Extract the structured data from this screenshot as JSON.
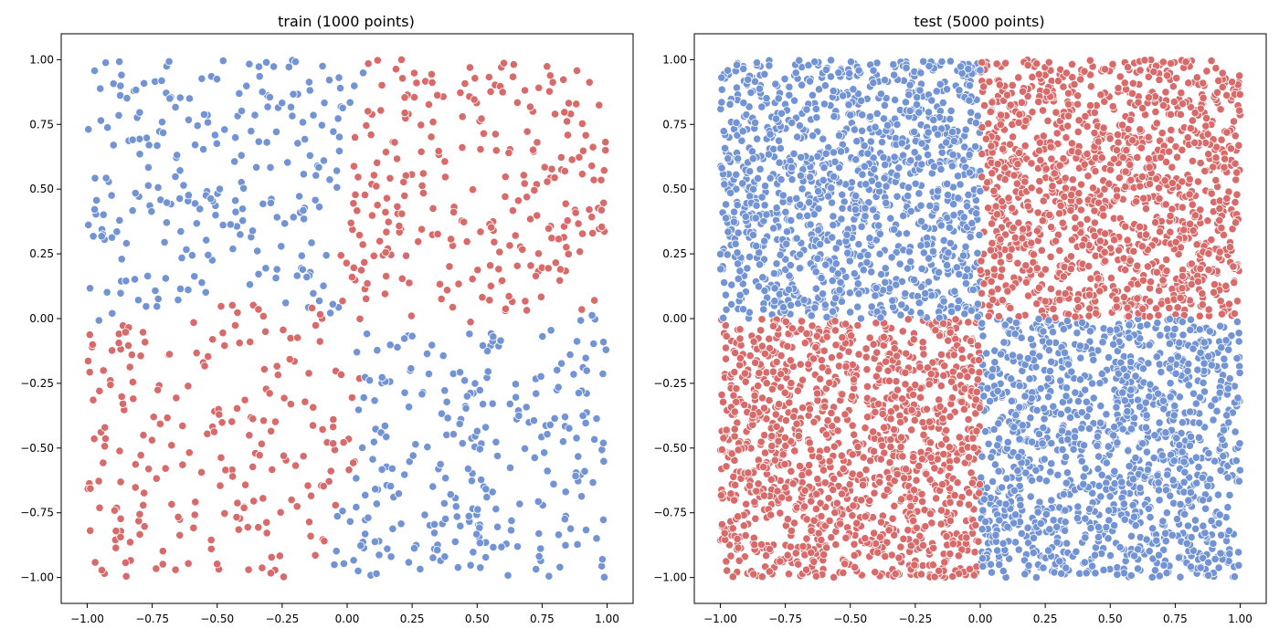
{
  "colors": {
    "class_a": "#7294d4",
    "class_b": "#d96a6a",
    "marker_edge": "#ffffff",
    "axis": "#000000"
  },
  "chart_data": [
    {
      "type": "scatter",
      "title": "train (1000 points)",
      "n_points": 1000,
      "xlim": [
        -1.1,
        1.1
      ],
      "ylim": [
        -1.1,
        1.1
      ],
      "xticks": [
        -1.0,
        -0.75,
        -0.5,
        -0.25,
        0.0,
        0.25,
        0.5,
        0.75,
        1.0
      ],
      "xtick_labels": [
        "−1.00",
        "−0.75",
        "−0.50",
        "−0.25",
        "0.00",
        "0.25",
        "0.50",
        "0.75",
        "1.00"
      ],
      "yticks": [
        1.0,
        0.75,
        0.5,
        0.25,
        0.0,
        -0.25,
        -0.5,
        -0.75,
        -1.0
      ],
      "ytick_labels": [
        "1.00",
        "0.75",
        "0.50",
        "0.25",
        "0.00",
        "−0.25",
        "−0.50",
        "−0.75",
        "−1.00"
      ],
      "grid": false,
      "legend": false,
      "classes": [
        {
          "color": "#7294d4",
          "regions": [
            "x<0 & y>0",
            "x>0 & y<0"
          ]
        },
        {
          "color": "#d96a6a",
          "regions": [
            "x>0 & y>0",
            "x<0 & y<0"
          ]
        }
      ],
      "point_range": {
        "x": [
          -1,
          1
        ],
        "y": [
          -1,
          1
        ]
      },
      "boundary_kind": "noisy"
    },
    {
      "type": "scatter",
      "title": "test (5000 points)",
      "n_points": 5000,
      "xlim": [
        -1.1,
        1.1
      ],
      "ylim": [
        -1.1,
        1.1
      ],
      "xticks": [
        -1.0,
        -0.75,
        -0.5,
        -0.25,
        0.0,
        0.25,
        0.5,
        0.75,
        1.0
      ],
      "xtick_labels": [
        "−1.00",
        "−0.75",
        "−0.50",
        "−0.25",
        "0.00",
        "0.25",
        "0.50",
        "0.75",
        "1.00"
      ],
      "yticks": [
        1.0,
        0.75,
        0.5,
        0.25,
        0.0,
        -0.25,
        -0.5,
        -0.75,
        -1.0
      ],
      "ytick_labels": [
        "1.00",
        "0.75",
        "0.50",
        "0.25",
        "0.00",
        "−0.25",
        "−0.50",
        "−0.75",
        "−1.00"
      ],
      "grid": false,
      "legend": false,
      "classes": [
        {
          "color": "#7294d4",
          "regions": [
            "x<0 & y>0",
            "x>0 & y<0"
          ]
        },
        {
          "color": "#d96a6a",
          "regions": [
            "x>0 & y>0",
            "x<0 & y<0"
          ]
        }
      ],
      "point_range": {
        "x": [
          -1,
          1
        ],
        "y": [
          -1,
          1
        ]
      },
      "boundary_kind": "sharp"
    }
  ]
}
